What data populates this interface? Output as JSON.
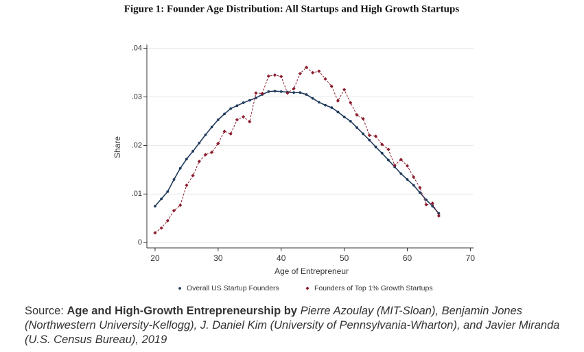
{
  "chart_data": {
    "type": "line",
    "title": "Figure 1: Founder Age Distribution: All Startups and High Growth Startups",
    "x_label": "Age of Entrepreneur",
    "y_label": "Share",
    "x": [
      20,
      21,
      22,
      23,
      24,
      25,
      26,
      27,
      28,
      29,
      30,
      31,
      32,
      33,
      34,
      35,
      36,
      37,
      38,
      39,
      40,
      41,
      42,
      43,
      44,
      45,
      46,
      47,
      48,
      49,
      50,
      51,
      52,
      53,
      54,
      55,
      56,
      57,
      58,
      59,
      60,
      61,
      62,
      63,
      64,
      65
    ],
    "series": [
      {
        "name": "Overall US Startup Founders",
        "color": "#1f3a5c",
        "dashed": false,
        "marker": "dot",
        "values": [
          0.0075,
          0.009,
          0.0105,
          0.013,
          0.0153,
          0.0172,
          0.0188,
          0.0205,
          0.0222,
          0.0238,
          0.0253,
          0.0265,
          0.0276,
          0.0282,
          0.0288,
          0.0293,
          0.0298,
          0.0305,
          0.0311,
          0.0312,
          0.0311,
          0.031,
          0.0309,
          0.0309,
          0.0305,
          0.0297,
          0.0289,
          0.0283,
          0.0278,
          0.0269,
          0.0259,
          0.025,
          0.0237,
          0.0224,
          0.0211,
          0.0197,
          0.0184,
          0.017,
          0.0156,
          0.0142,
          0.013,
          0.0118,
          0.0103,
          0.0088,
          0.0075,
          0.006
        ]
      },
      {
        "name": "Founders of Top 1% Growth Startups",
        "color": "#8b1c2c",
        "dashed": true,
        "marker": "diamond",
        "values": [
          0.002,
          0.003,
          0.0045,
          0.0066,
          0.0077,
          0.0118,
          0.0138,
          0.0167,
          0.0181,
          0.0186,
          0.0204,
          0.0229,
          0.0224,
          0.0253,
          0.0259,
          0.0249,
          0.0308,
          0.0307,
          0.0343,
          0.0345,
          0.0342,
          0.0308,
          0.0317,
          0.0348,
          0.0361,
          0.035,
          0.0353,
          0.0337,
          0.0322,
          0.0292,
          0.0315,
          0.0288,
          0.0263,
          0.0255,
          0.0221,
          0.0219,
          0.0202,
          0.0192,
          0.0159,
          0.0171,
          0.0158,
          0.0135,
          0.0113,
          0.0078,
          0.0081,
          0.0055
        ]
      }
    ],
    "xlim": [
      18.7,
      70.5
    ],
    "xticks": [
      20,
      30,
      40,
      50,
      60,
      70
    ],
    "ylim": [
      -0.0011,
      0.0408
    ],
    "yticks": [
      0,
      {
        "value": 0.01,
        "label": ".01"
      },
      {
        "value": 0.02,
        "label": ".02"
      },
      {
        "value": 0.03,
        "label": ".03"
      },
      {
        "value": 0.04,
        "label": ".04"
      }
    ],
    "grid": true,
    "legend": "bottom"
  },
  "source": {
    "prefix": "Source:",
    "title": "Age and High-Growth Entrepreneurship by",
    "authors": "Pierre Azoulay (MIT-Sloan), Benjamin Jones (Northwestern University-Kellogg), J. Daniel Kim (University of Pennsylvania-Wharton), and Javier Miranda (U.S. Census Bureau), 2019"
  }
}
